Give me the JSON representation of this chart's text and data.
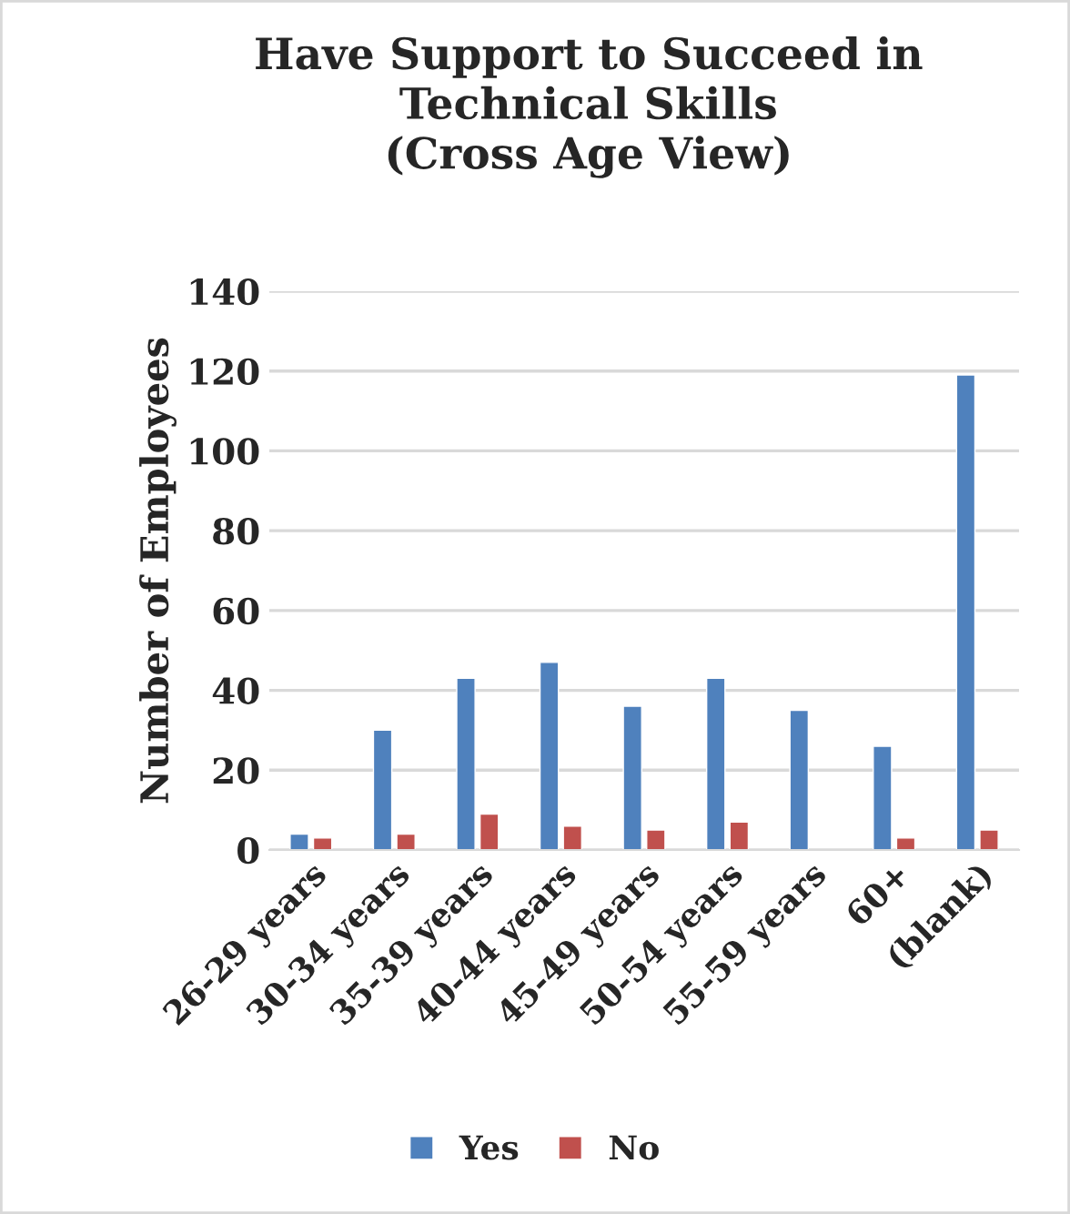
{
  "chart_data": {
    "type": "bar",
    "title": "Have Support to Succeed in\nTechnical Skills\n(Cross Age View)",
    "ylabel": "Number of Employees",
    "categories": [
      "26-29 years",
      "30-34 years",
      "35-39 years",
      "40-44 years",
      "45-49 years",
      "50-54 years",
      "55-59 years",
      "60+",
      "(blank)"
    ],
    "series": [
      {
        "name": "Yes",
        "color": "#4f81bd",
        "values": [
          4,
          30,
          43,
          47,
          36,
          43,
          35,
          26,
          119
        ]
      },
      {
        "name": "No",
        "color": "#c0504d",
        "values": [
          3,
          4,
          9,
          6,
          5,
          7,
          null,
          3,
          5
        ]
      }
    ],
    "ylim": [
      0,
      140
    ],
    "yticks": [
      0,
      20,
      40,
      60,
      80,
      100,
      120,
      140
    ],
    "grid": "y",
    "legend": "bottom"
  }
}
